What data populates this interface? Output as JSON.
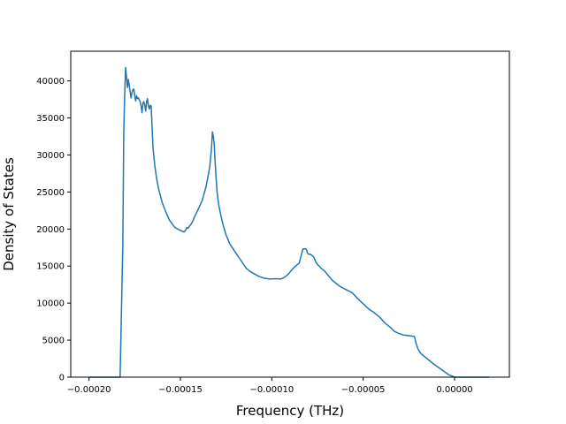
{
  "chart_data": {
    "type": "line",
    "xlabel": "Frequency (THz)",
    "ylabel": "Density of States",
    "xlim": [
      -0.00021,
      3e-05
    ],
    "ylim": [
      0,
      44000
    ],
    "grid": false,
    "x_ticks": [
      -0.0002,
      -0.00015,
      -0.0001,
      -5e-05,
      0.0
    ],
    "x_tick_labels": [
      "−0.00020",
      "−0.00015",
      "−0.00010",
      "−0.00005",
      "0.00000"
    ],
    "y_ticks": [
      0,
      5000,
      10000,
      15000,
      20000,
      25000,
      30000,
      35000,
      40000
    ],
    "y_tick_labels": [
      "0",
      "5000",
      "10000",
      "15000",
      "20000",
      "25000",
      "30000",
      "35000",
      "40000"
    ],
    "line_color": "#1f77b4",
    "series": [
      {
        "x": [
          -0.0002,
          -0.000183,
          -0.0001815,
          -0.000181,
          -0.0001805,
          -0.00018,
          -0.0001795,
          -0.000179,
          -0.0001785,
          -0.000178,
          -0.000177,
          -0.0001765,
          -0.000176,
          -0.0001755,
          -0.000175,
          -0.0001745,
          -0.000174,
          -0.0001735,
          -0.000173,
          -0.000172,
          -0.0001715,
          -0.000171,
          -0.0001705,
          -0.00017,
          -0.0001695,
          -0.000169,
          -0.0001685,
          -0.000168,
          -0.0001675,
          -0.000167,
          -0.0001665,
          -0.000166,
          -0.000165,
          -0.000164,
          -0.000163,
          -0.000162,
          -0.00016,
          -0.000158,
          -0.000156,
          -0.000153,
          -0.00015,
          -0.000148,
          -0.000147,
          -0.0001465,
          -0.000146,
          -0.0001455,
          -0.000145,
          -0.000144,
          -0.000143,
          -0.000142,
          -0.00014,
          -0.000138,
          -0.000136,
          -0.000134,
          -0.000133,
          -0.0001325,
          -0.000132,
          -0.0001315,
          -0.000131,
          -0.0001305,
          -0.00013,
          -0.0001295,
          -0.000129,
          -0.000128,
          -0.000127,
          -0.000126,
          -0.000125,
          -0.000123,
          -0.00012,
          -0.000117,
          -0.000114,
          -0.000112,
          -0.00011,
          -0.000107,
          -0.000104,
          -0.000101,
          -9.8e-05,
          -9.5e-05,
          -9.3e-05,
          -9.1e-05,
          -8.9e-05,
          -8.7e-05,
          -8.5e-05,
          -8.3e-05,
          -8.15e-05,
          -8.1e-05,
          -8.05e-05,
          -8e-05,
          -7.95e-05,
          -7.9e-05,
          -7.8e-05,
          -7.7e-05,
          -7.6e-05,
          -7.5e-05,
          -7.45e-05,
          -7.4e-05,
          -7.3e-05,
          -7.1e-05,
          -6.9e-05,
          -6.7e-05,
          -6.5e-05,
          -6.3e-05,
          -6e-05,
          -5.6e-05,
          -5.3e-05,
          -5e-05,
          -4.7e-05,
          -4.4e-05,
          -4.1e-05,
          -3.8e-05,
          -3.5e-05,
          -3.3e-05,
          -3.1e-05,
          -2.8e-05,
          -2.5e-05,
          -2.2e-05,
          -2.1e-05,
          -2e-05,
          -1.9e-05,
          -1.8e-05,
          -1.5e-05,
          -1.1e-05,
          -7e-06,
          -3e-06,
          0.0,
          2e-06,
          1e-05,
          1.9e-05
        ],
        "y": [
          0,
          0,
          18000,
          33000,
          38000,
          41800,
          40500,
          39100,
          40200,
          39400,
          37700,
          38400,
          38800,
          38900,
          38000,
          37300,
          38000,
          37600,
          37700,
          37200,
          36600,
          35700,
          37000,
          37200,
          36700,
          35900,
          37200,
          37600,
          36600,
          36200,
          36700,
          36600,
          31000,
          28500,
          26800,
          25500,
          23600,
          22300,
          21200,
          20200,
          19800,
          19600,
          19900,
          20200,
          20100,
          20200,
          20400,
          20700,
          21200,
          21800,
          22800,
          23900,
          25700,
          28300,
          30800,
          33100,
          32500,
          31500,
          29000,
          27000,
          25200,
          24100,
          23200,
          22000,
          20900,
          20000,
          19200,
          18000,
          16900,
          15800,
          14700,
          14300,
          14000,
          13600,
          13350,
          13250,
          13300,
          13250,
          13500,
          13900,
          14500,
          15000,
          15400,
          17300,
          17350,
          17200,
          16800,
          16600,
          16600,
          16600,
          16450,
          16200,
          15600,
          15200,
          15100,
          15000,
          14700,
          14300,
          13700,
          13100,
          12700,
          12300,
          11900,
          11400,
          10600,
          9900,
          9200,
          8700,
          8100,
          7300,
          6700,
          6200,
          5950,
          5700,
          5600,
          5500,
          4500,
          3800,
          3400,
          3100,
          2500,
          1700,
          1000,
          300,
          0,
          0,
          0,
          0
        ]
      }
    ]
  }
}
